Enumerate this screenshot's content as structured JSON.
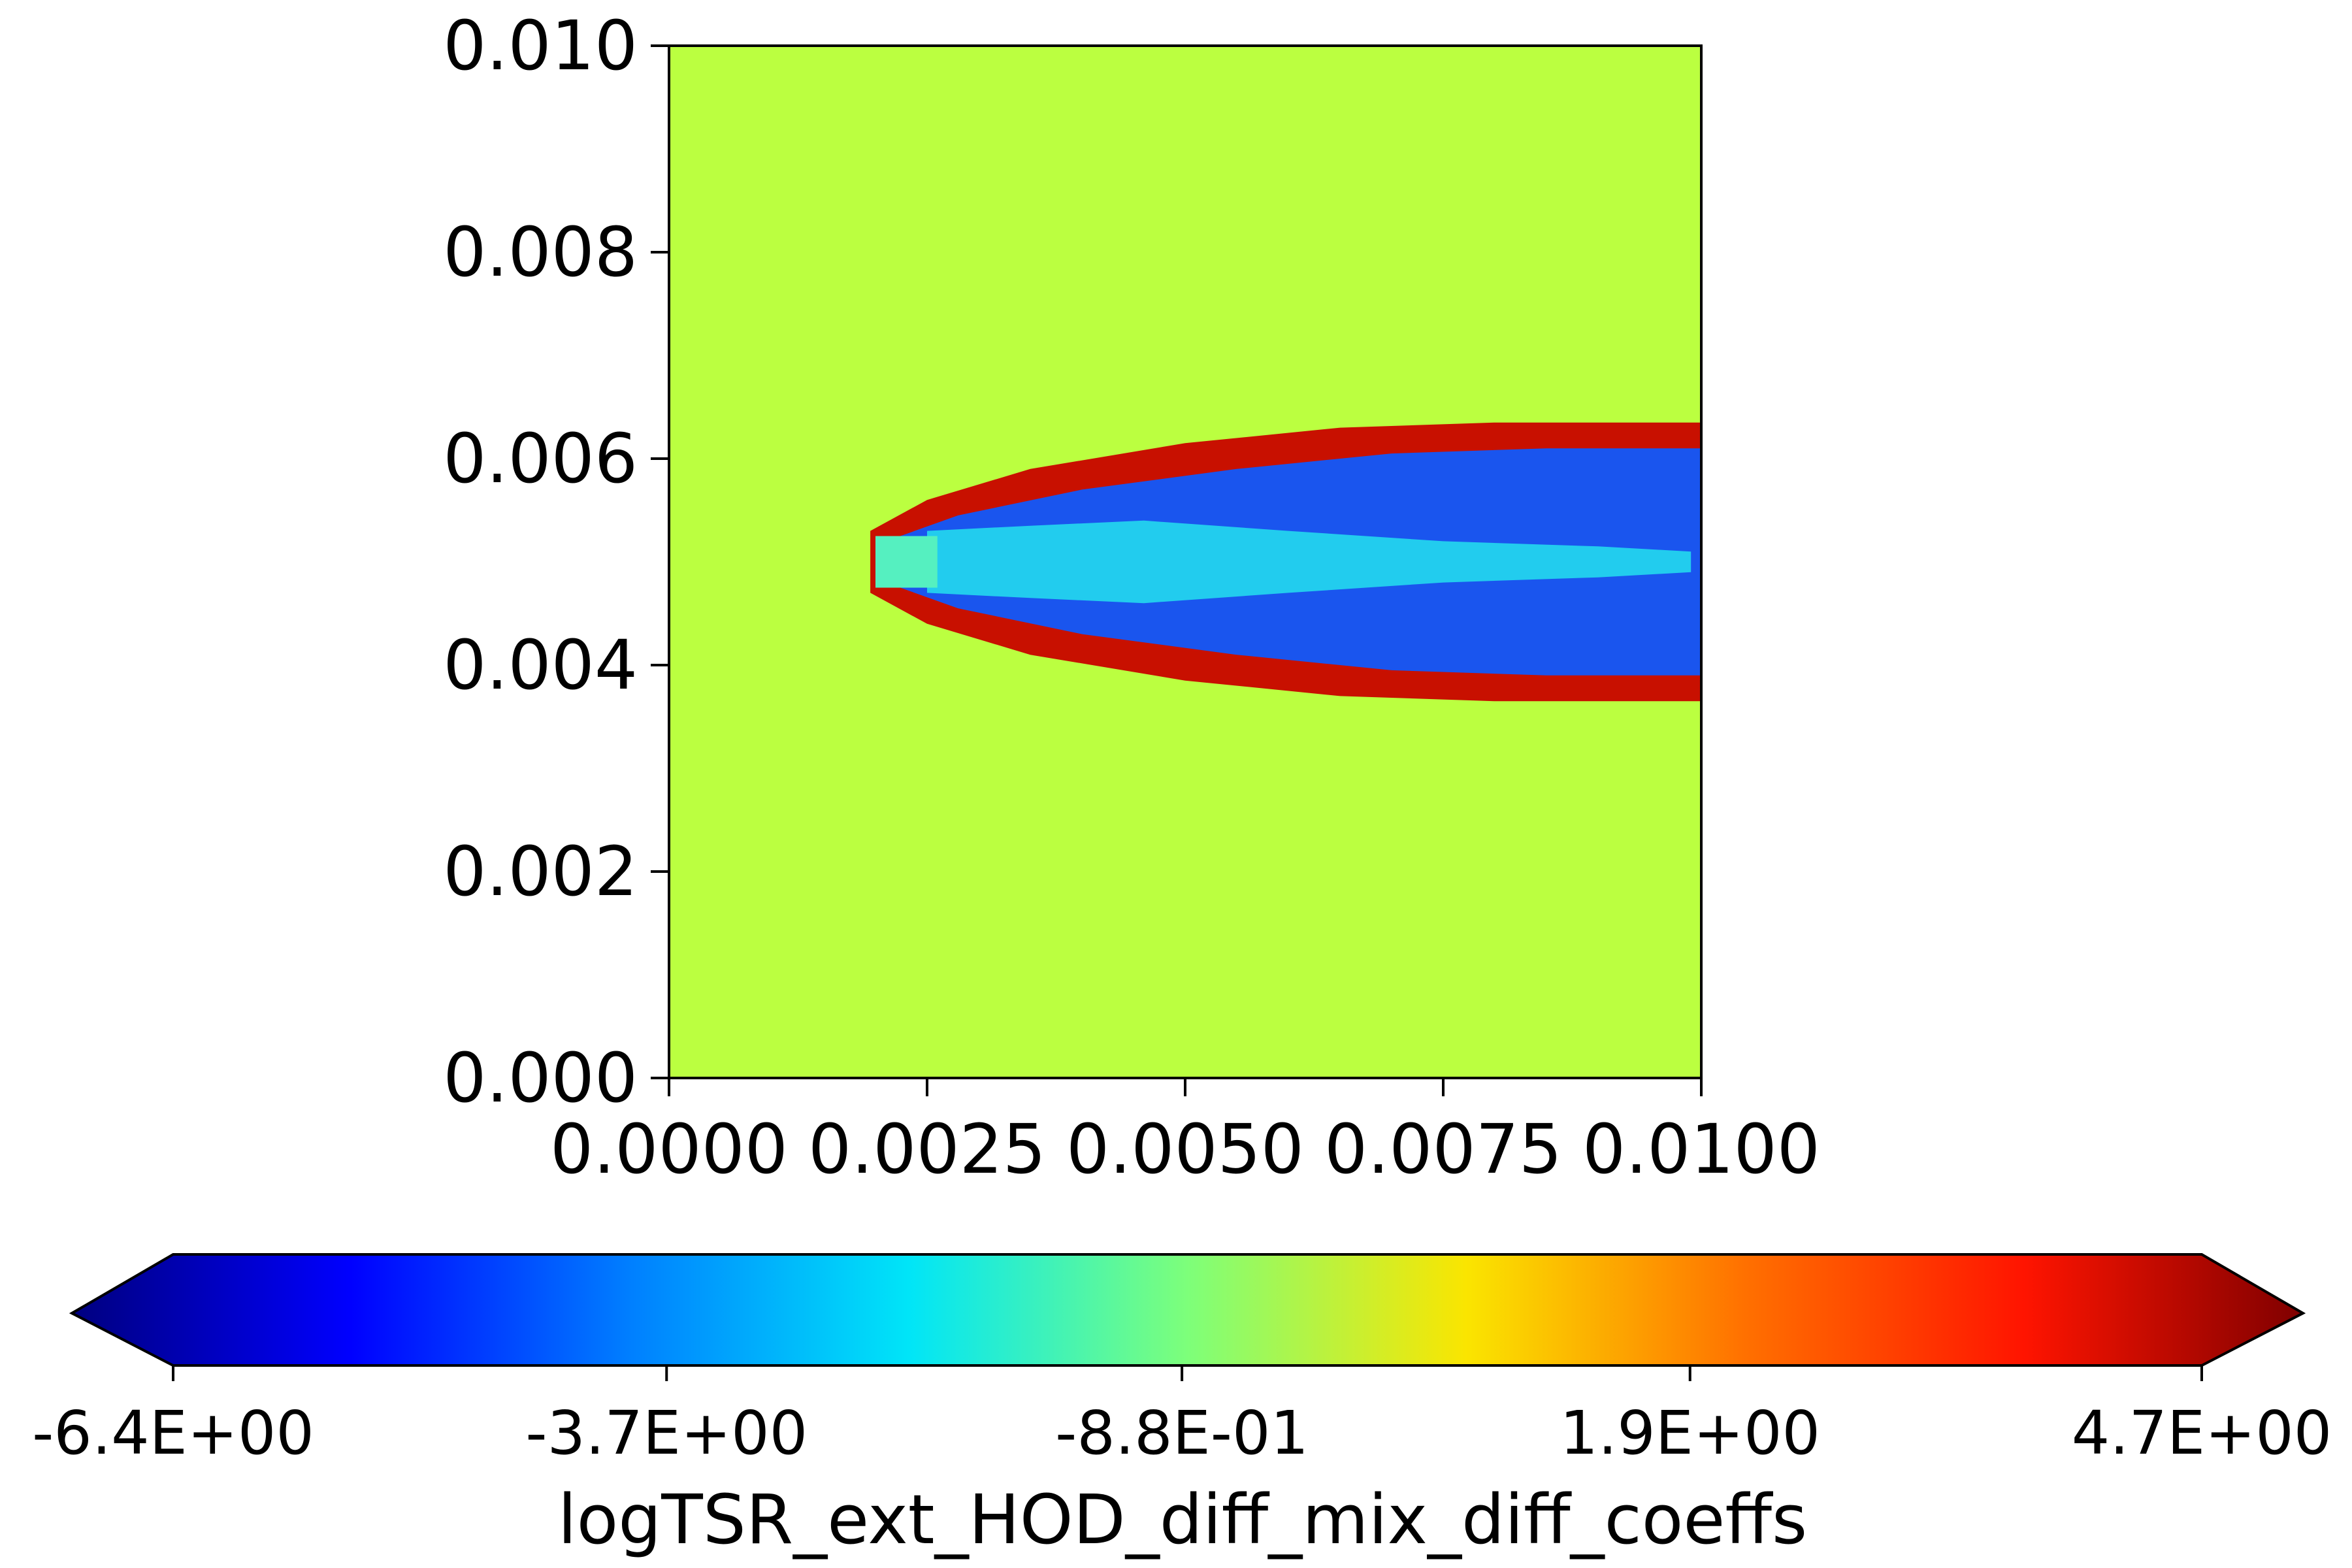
{
  "chart_data": {
    "type": "heatmap",
    "x_axis": {
      "range": [
        0.0,
        0.01
      ],
      "ticks": [
        0.0,
        0.0025,
        0.005,
        0.0075,
        0.01
      ],
      "tick_labels": [
        "0.0000",
        "0.0025",
        "0.0050",
        "0.0075",
        "0.0100"
      ]
    },
    "y_axis": {
      "range": [
        0.0,
        0.01
      ],
      "ticks": [
        0.0,
        0.002,
        0.004,
        0.006,
        0.008,
        0.01
      ],
      "tick_labels": [
        "0.000",
        "0.002",
        "0.004",
        "0.006",
        "0.008",
        "0.010"
      ]
    },
    "background_value": 0.3,
    "field_regions": [
      {
        "name": "outer-shear-layer",
        "value": 4.5,
        "color": "#c81000",
        "outline": [
          [
            0.00195,
            0.0053
          ],
          [
            0.0025,
            0.0056
          ],
          [
            0.0035,
            0.0059
          ],
          [
            0.005,
            0.00615
          ],
          [
            0.0065,
            0.0063
          ],
          [
            0.008,
            0.00635
          ],
          [
            0.01,
            0.00635
          ],
          [
            0.01,
            0.00365
          ],
          [
            0.008,
            0.00365
          ],
          [
            0.0065,
            0.0037
          ],
          [
            0.005,
            0.00385
          ],
          [
            0.0035,
            0.0041
          ],
          [
            0.0025,
            0.0044
          ],
          [
            0.00195,
            0.0047
          ]
        ]
      },
      {
        "name": "jet-core-outer",
        "value": -4.3,
        "color": "#1a55ee",
        "outline": [
          [
            0.0021,
            0.0052
          ],
          [
            0.0028,
            0.00545
          ],
          [
            0.004,
            0.0057
          ],
          [
            0.0055,
            0.0059
          ],
          [
            0.007,
            0.00605
          ],
          [
            0.0085,
            0.0061
          ],
          [
            0.01,
            0.0061
          ],
          [
            0.01,
            0.0039
          ],
          [
            0.0085,
            0.0039
          ],
          [
            0.007,
            0.00395
          ],
          [
            0.0055,
            0.0041
          ],
          [
            0.004,
            0.0043
          ],
          [
            0.0028,
            0.00455
          ],
          [
            0.0021,
            0.0048
          ]
        ]
      },
      {
        "name": "potential-core",
        "value": -2.6,
        "color": "#22ccee",
        "outline": [
          [
            0.0025,
            0.0053
          ],
          [
            0.0035,
            0.00535
          ],
          [
            0.0046,
            0.0054
          ],
          [
            0.006,
            0.0053
          ],
          [
            0.0075,
            0.0052
          ],
          [
            0.009,
            0.00515
          ],
          [
            0.0099,
            0.0051
          ],
          [
            0.0099,
            0.0049
          ],
          [
            0.009,
            0.00485
          ],
          [
            0.0075,
            0.0048
          ],
          [
            0.006,
            0.0047
          ],
          [
            0.0046,
            0.0046
          ],
          [
            0.0035,
            0.00465
          ],
          [
            0.0025,
            0.0047
          ]
        ]
      },
      {
        "name": "nozzle",
        "value": -1.5,
        "color": "#55f0c0",
        "outline": [
          [
            0.002,
            0.00525
          ],
          [
            0.0026,
            0.00525
          ],
          [
            0.0026,
            0.00475
          ],
          [
            0.002,
            0.00475
          ]
        ]
      }
    ],
    "colorbar": {
      "colormap": "jet",
      "colors": [
        "#00007f",
        "#0000ff",
        "#007fff",
        "#00e5f8",
        "#7dff7a",
        "#fae500",
        "#ff7000",
        "#ff1400",
        "#7f0000"
      ],
      "range": [
        -6.4,
        4.7
      ],
      "extend": "both",
      "tick_values": [
        -6.4,
        -3.7,
        -0.88,
        1.9,
        4.7
      ],
      "tick_labels": [
        "-6.4E+00",
        "-3.7E+00",
        "-8.8E-01",
        "1.9E+00",
        "4.7E+00"
      ],
      "label": "logTSR_ext_HOD_diff_mix_diff_coeffs"
    }
  }
}
